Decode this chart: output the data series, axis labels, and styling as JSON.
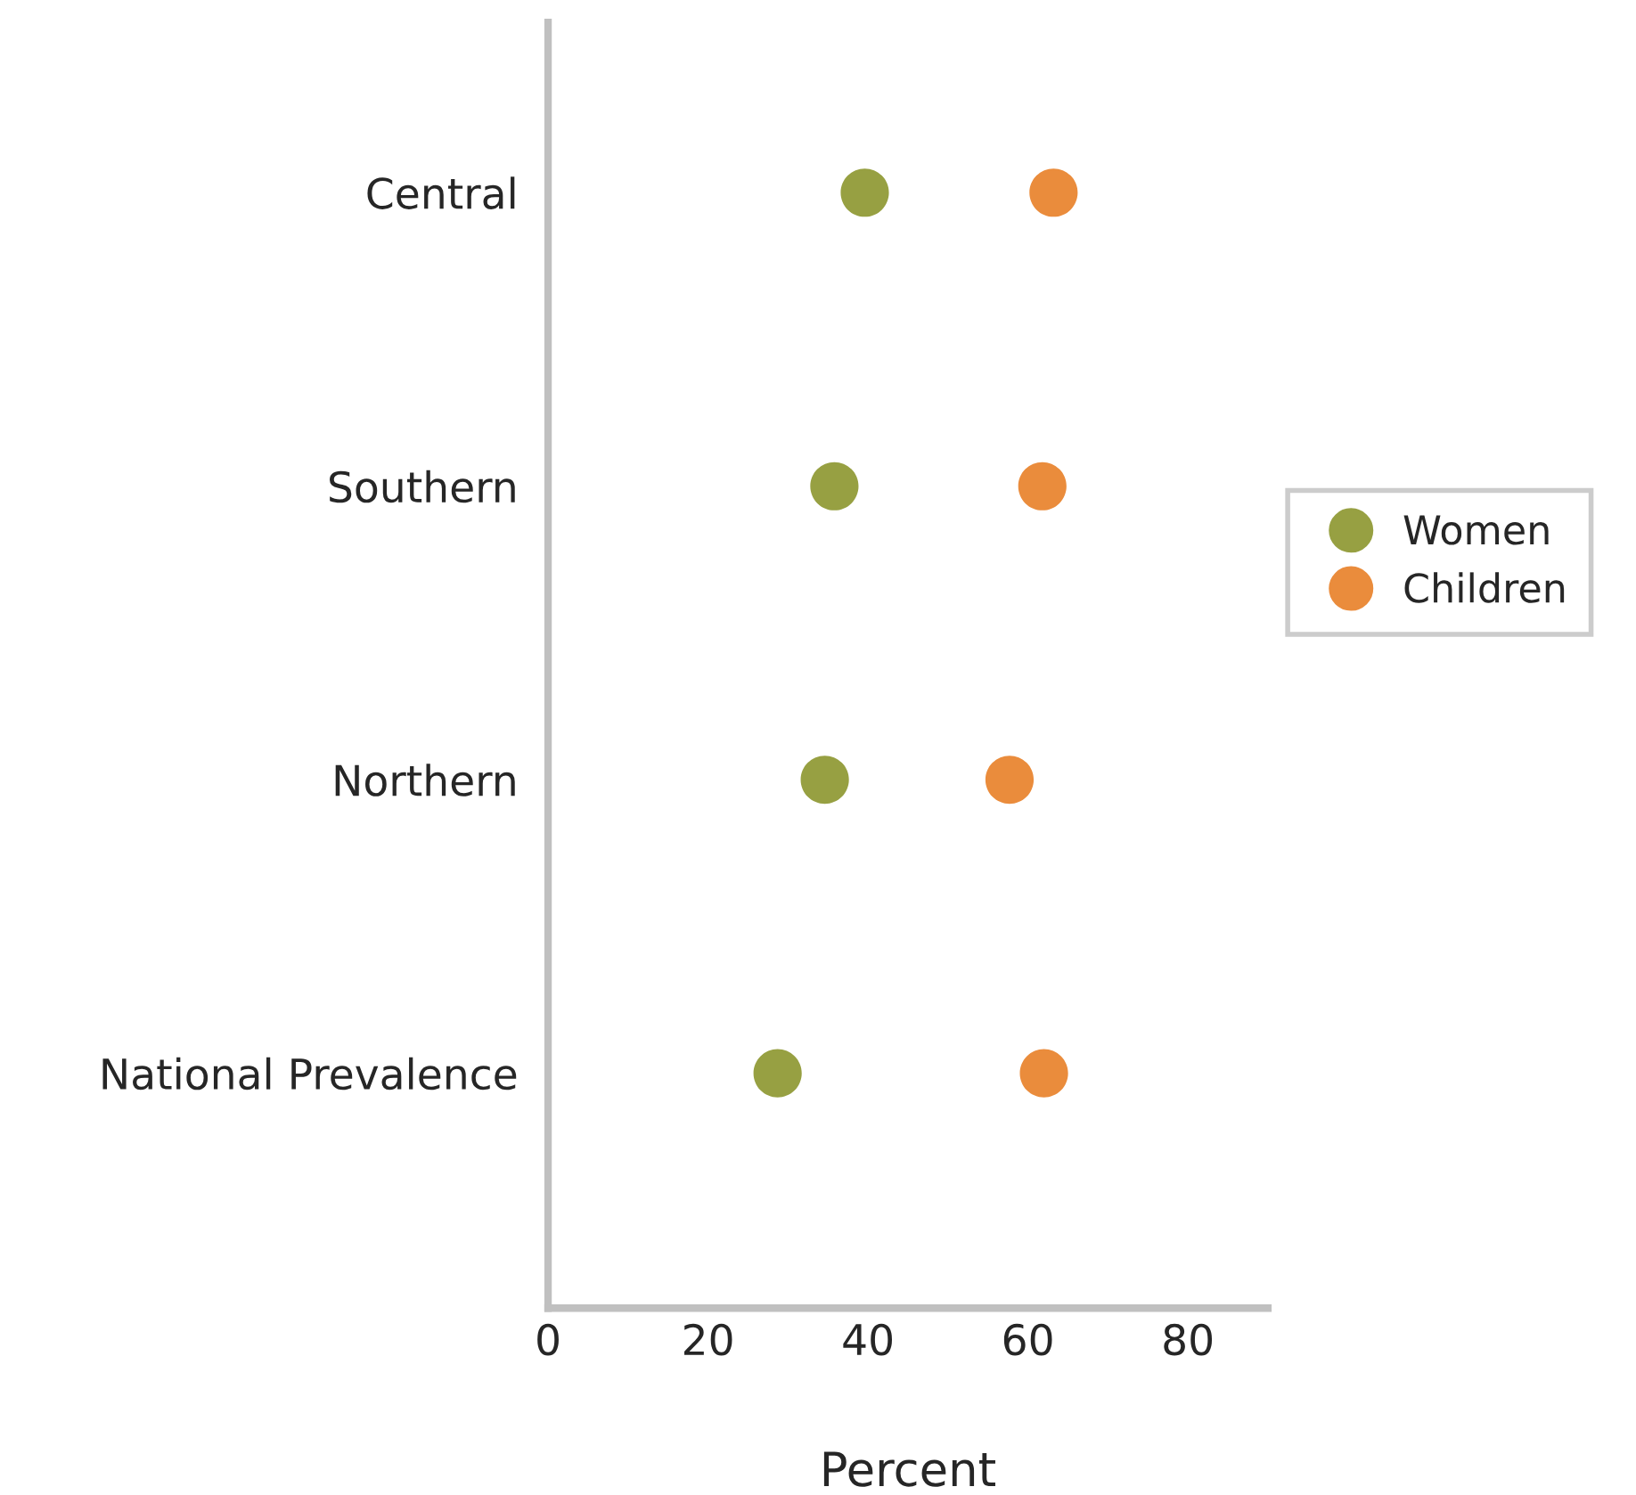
{
  "chart_data": {
    "type": "scatter",
    "xlabel": "Percent",
    "orientation": "horizontal",
    "categories": [
      "Central",
      "Southern",
      "Northern",
      "National Prevalence"
    ],
    "series": [
      {
        "name": "Women",
        "color": "#97a042",
        "values": [
          39.6,
          35.8,
          34.6,
          28.7
        ]
      },
      {
        "name": "Children",
        "color": "#ea8c3c",
        "values": [
          63.2,
          61.8,
          57.7,
          62.0
        ]
      }
    ],
    "xlim": [
      0,
      90
    ],
    "xticks": [
      0,
      20,
      40,
      60,
      80
    ],
    "grid": false,
    "legend": "right",
    "marker": "circle"
  }
}
